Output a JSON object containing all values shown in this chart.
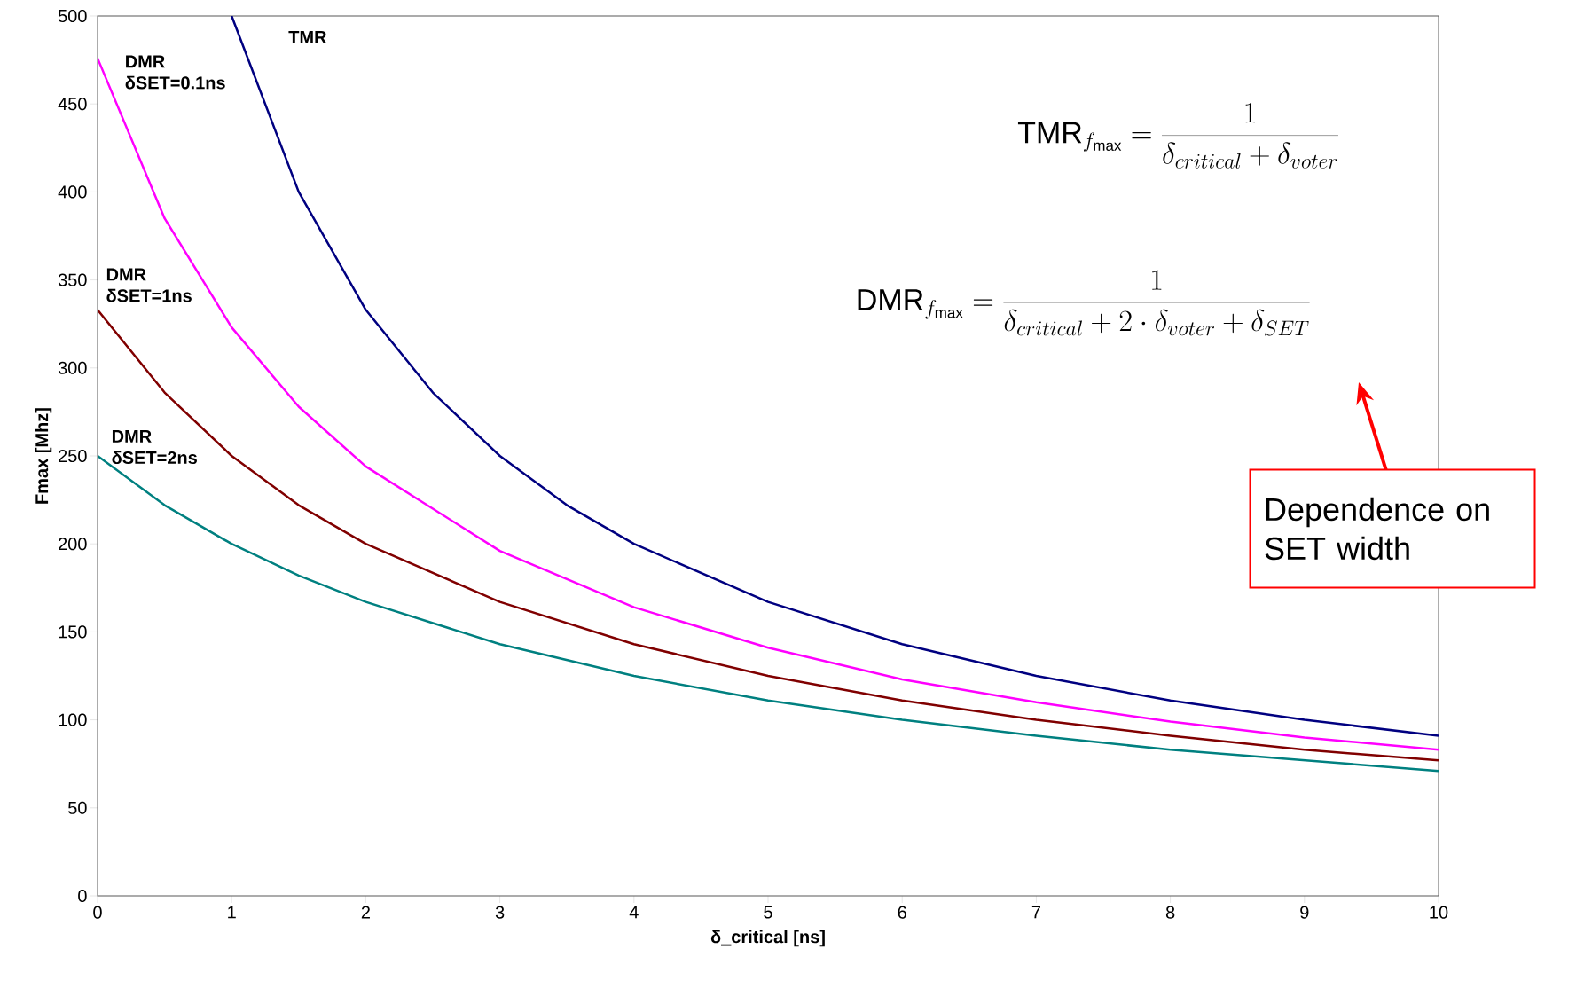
{
  "chart_data": {
    "type": "line",
    "xlabel": "δ_critical [ns]",
    "ylabel": "Fmax [Mhz]",
    "xlim": [
      0,
      10
    ],
    "ylim": [
      0,
      500
    ],
    "xticks": [
      0,
      1,
      2,
      3,
      4,
      5,
      6,
      7,
      8,
      9,
      10
    ],
    "yticks": [
      0,
      50,
      100,
      150,
      200,
      250,
      300,
      350,
      400,
      450,
      500
    ],
    "series": [
      {
        "name": "TMR",
        "color": "#000080",
        "x": [
          1,
          1.5,
          2,
          2.5,
          3,
          3.5,
          4,
          5,
          6,
          7,
          8,
          9,
          10
        ],
        "values": [
          500,
          400,
          333,
          286,
          250,
          222,
          200,
          167,
          143,
          125,
          111,
          100,
          91
        ]
      },
      {
        "name": "DMR δSET=0.1ns",
        "color": "#ff00ff",
        "x": [
          0,
          0.5,
          1,
          1.5,
          2,
          3,
          4,
          5,
          6,
          7,
          8,
          9,
          10
        ],
        "values": [
          476,
          385,
          323,
          278,
          244,
          196,
          164,
          141,
          123,
          110,
          99,
          90,
          83
        ]
      },
      {
        "name": "DMR δSET=1ns",
        "color": "#800000",
        "x": [
          0,
          0.5,
          1,
          1.5,
          2,
          3,
          4,
          5,
          6,
          7,
          8,
          9,
          10
        ],
        "values": [
          333,
          286,
          250,
          222,
          200,
          167,
          143,
          125,
          111,
          100,
          91,
          83,
          77
        ]
      },
      {
        "name": "DMR δSET=2ns",
        "color": "#008080",
        "x": [
          0,
          0.5,
          1,
          1.5,
          2,
          3,
          4,
          5,
          6,
          7,
          8,
          9,
          10
        ],
        "values": [
          250,
          222,
          200,
          182,
          167,
          143,
          125,
          111,
          100,
          91,
          83,
          77,
          71
        ]
      }
    ],
    "annotations": [
      "\\mathrm{TMR}_{f_{\\max}} = \\frac{1}{\\delta_{critical}+\\delta_{voter}}",
      "\\mathrm{DMR}_{f_{\\max}} = \\frac{1}{\\delta_{critical}+2\\cdot\\delta_{voter}+\\delta_{SET}}",
      "Dependence on SET width"
    ]
  }
}
